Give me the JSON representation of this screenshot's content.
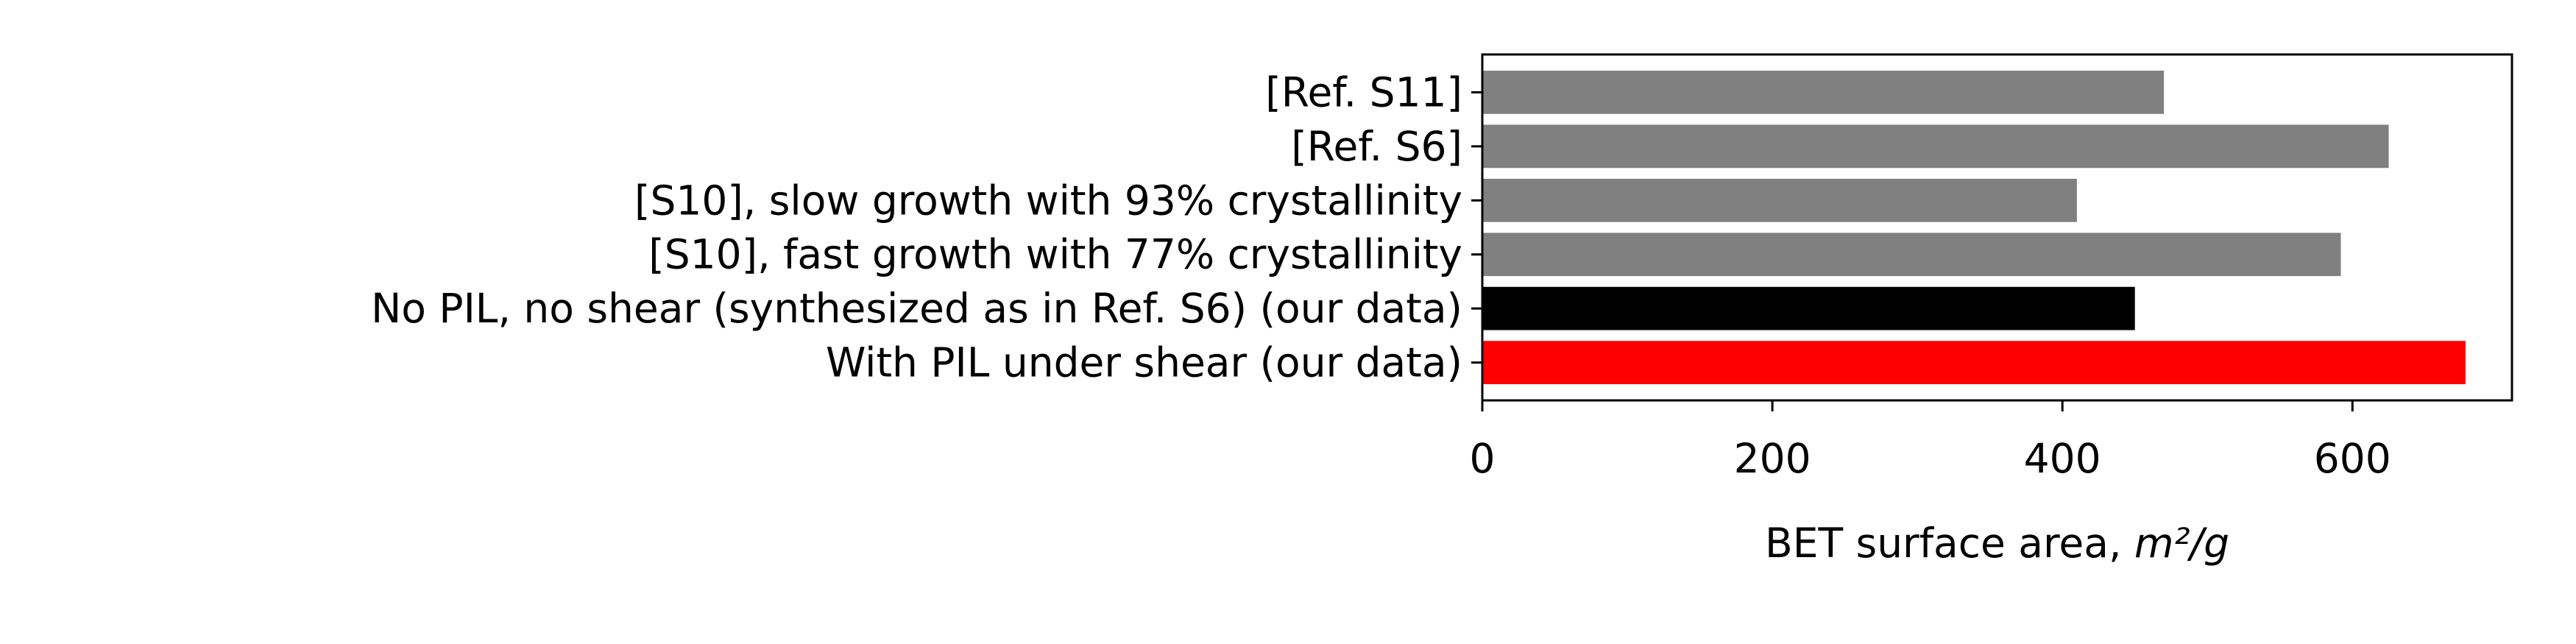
{
  "chart_data": {
    "type": "bar",
    "orientation": "horizontal",
    "categories": [
      "[Ref. S11]",
      "[Ref. S6]",
      "[S10], slow growth with 93% crystallinity",
      "[S10], fast growth with 77% crystallinity",
      "No PIL, no shear (synthesized as in Ref. S6) (our data)",
      "With PIL under shear (our data)"
    ],
    "values": [
      470,
      625,
      410,
      592,
      450,
      678
    ],
    "colors": [
      "#808080",
      "#808080",
      "#808080",
      "#808080",
      "#000000",
      "#ff0000"
    ],
    "xlabel": "BET surface area, ",
    "xlabel_unit": "m²/g",
    "xlim": [
      0,
      710
    ],
    "xticks": [
      0,
      200,
      400,
      600
    ],
    "xtick_labels": [
      "0",
      "200",
      "400",
      "600"
    ],
    "grid": false
  }
}
